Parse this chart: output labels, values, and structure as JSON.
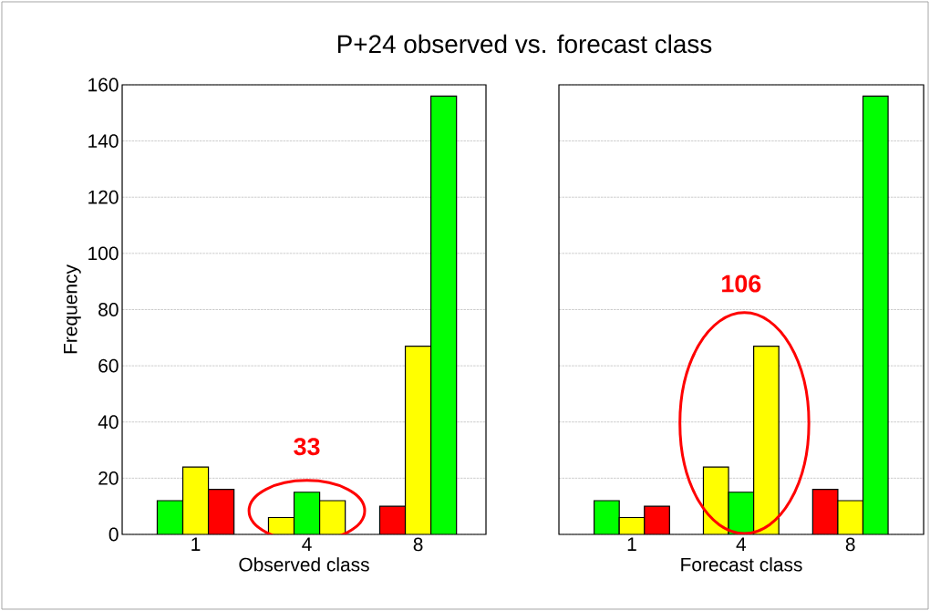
{
  "chart_data": [
    {
      "type": "bar",
      "title": "P+24 observed vs. forecast class",
      "xlabel": "Observed class",
      "ylabel": "Frequency",
      "categories": [
        "1",
        "4",
        "8"
      ],
      "series": [
        {
          "values": [
            12,
            6,
            10
          ],
          "colors": [
            "#00ff00",
            "#ffff00",
            "#ff0000"
          ]
        },
        {
          "values": [
            24,
            15,
            67
          ],
          "colors": [
            "#ffff00",
            "#00ff00",
            "#ffff00"
          ]
        },
        {
          "values": [
            16,
            12,
            156
          ],
          "colors": [
            "#ff0000",
            "#ffff00",
            "#00ff00"
          ]
        }
      ],
      "ylim": [
        0,
        160
      ],
      "yticks": [
        0,
        20,
        40,
        60,
        80,
        100,
        120,
        140,
        160
      ],
      "grid": "y",
      "annotations": [
        "33"
      ]
    },
    {
      "type": "bar",
      "xlabel": "Forecast class",
      "categories": [
        "1",
        "4",
        "8"
      ],
      "series": [
        {
          "values": [
            12,
            24,
            16
          ],
          "colors": [
            "#00ff00",
            "#ffff00",
            "#ff0000"
          ]
        },
        {
          "values": [
            6,
            15,
            12
          ],
          "colors": [
            "#ffff00",
            "#00ff00",
            "#ffff00"
          ]
        },
        {
          "values": [
            10,
            67,
            156
          ],
          "colors": [
            "#ff0000",
            "#ffff00",
            "#00ff00"
          ]
        }
      ],
      "ylim": [
        0,
        160
      ],
      "yticks": [
        0,
        20,
        40,
        60,
        80,
        100,
        120,
        140,
        160
      ],
      "grid": "y",
      "tick_labels": "x",
      "annotations": [
        "106"
      ]
    }
  ]
}
